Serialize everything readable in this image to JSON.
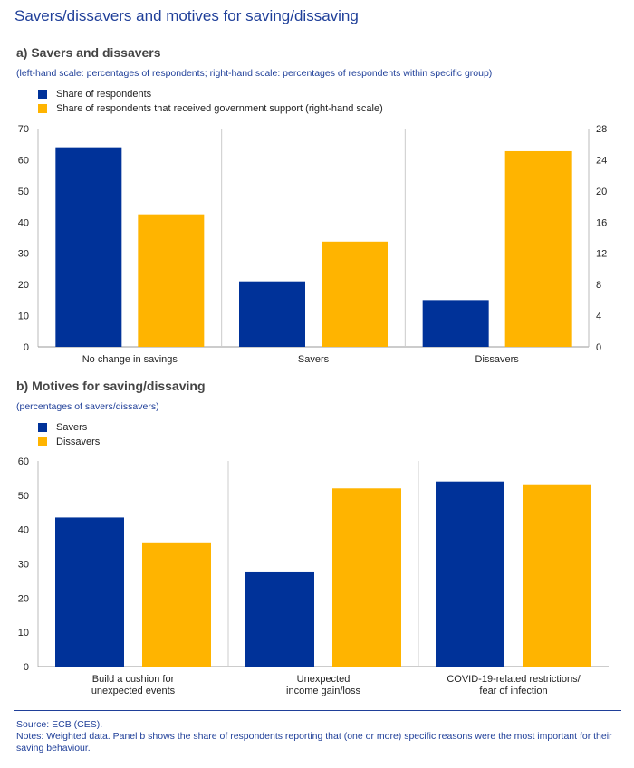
{
  "title": "Savers/dissavers and motives for saving/dissaving",
  "colors": {
    "blue": "#003299",
    "yellow": "#ffb400",
    "accent": "#1f3f99"
  },
  "chart_data": [
    {
      "type": "bar",
      "title": "a) Savers and dissavers",
      "subtitle": "(left-hand scale: percentages of respondents; right-hand scale: percentages of respondents within specific group)",
      "categories": [
        "No change in savings",
        "Savers",
        "Dissavers"
      ],
      "series": [
        {
          "name": "Share of respondents",
          "values": [
            64,
            21,
            15
          ],
          "axis": "left"
        },
        {
          "name": "Share of respondents that received government support (right-hand scale)",
          "values": [
            17,
            13.5,
            25.1
          ],
          "axis": "right"
        }
      ],
      "ylim": [
        0,
        70
      ],
      "yticks": [
        0,
        10,
        20,
        30,
        40,
        50,
        60,
        70
      ],
      "y2lim": [
        0,
        28
      ],
      "y2ticks": [
        0,
        4,
        8,
        12,
        16,
        20,
        24,
        28
      ],
      "legend_position": "top-left"
    },
    {
      "type": "bar",
      "title": "b) Motives for saving/dissaving",
      "subtitle": "(percentages of savers/dissavers)",
      "categories": [
        [
          "Build a cushion for",
          "unexpected events"
        ],
        [
          "Unexpected",
          "income gain/loss"
        ],
        [
          "COVID-19-related restrictions/",
          "fear of infection"
        ]
      ],
      "series": [
        {
          "name": "Savers",
          "values": [
            43.5,
            27.5,
            54
          ]
        },
        {
          "name": "Dissavers",
          "values": [
            36,
            52,
            53.2
          ]
        }
      ],
      "ylim": [
        0,
        60
      ],
      "yticks": [
        0,
        10,
        20,
        30,
        40,
        50,
        60
      ],
      "legend_position": "top-left"
    }
  ],
  "source": "Source: ECB (CES).",
  "notes": "Notes: Weighted data. Panel b shows the share of respondents reporting that (one or more) specific reasons were the most important for their saving behaviour."
}
